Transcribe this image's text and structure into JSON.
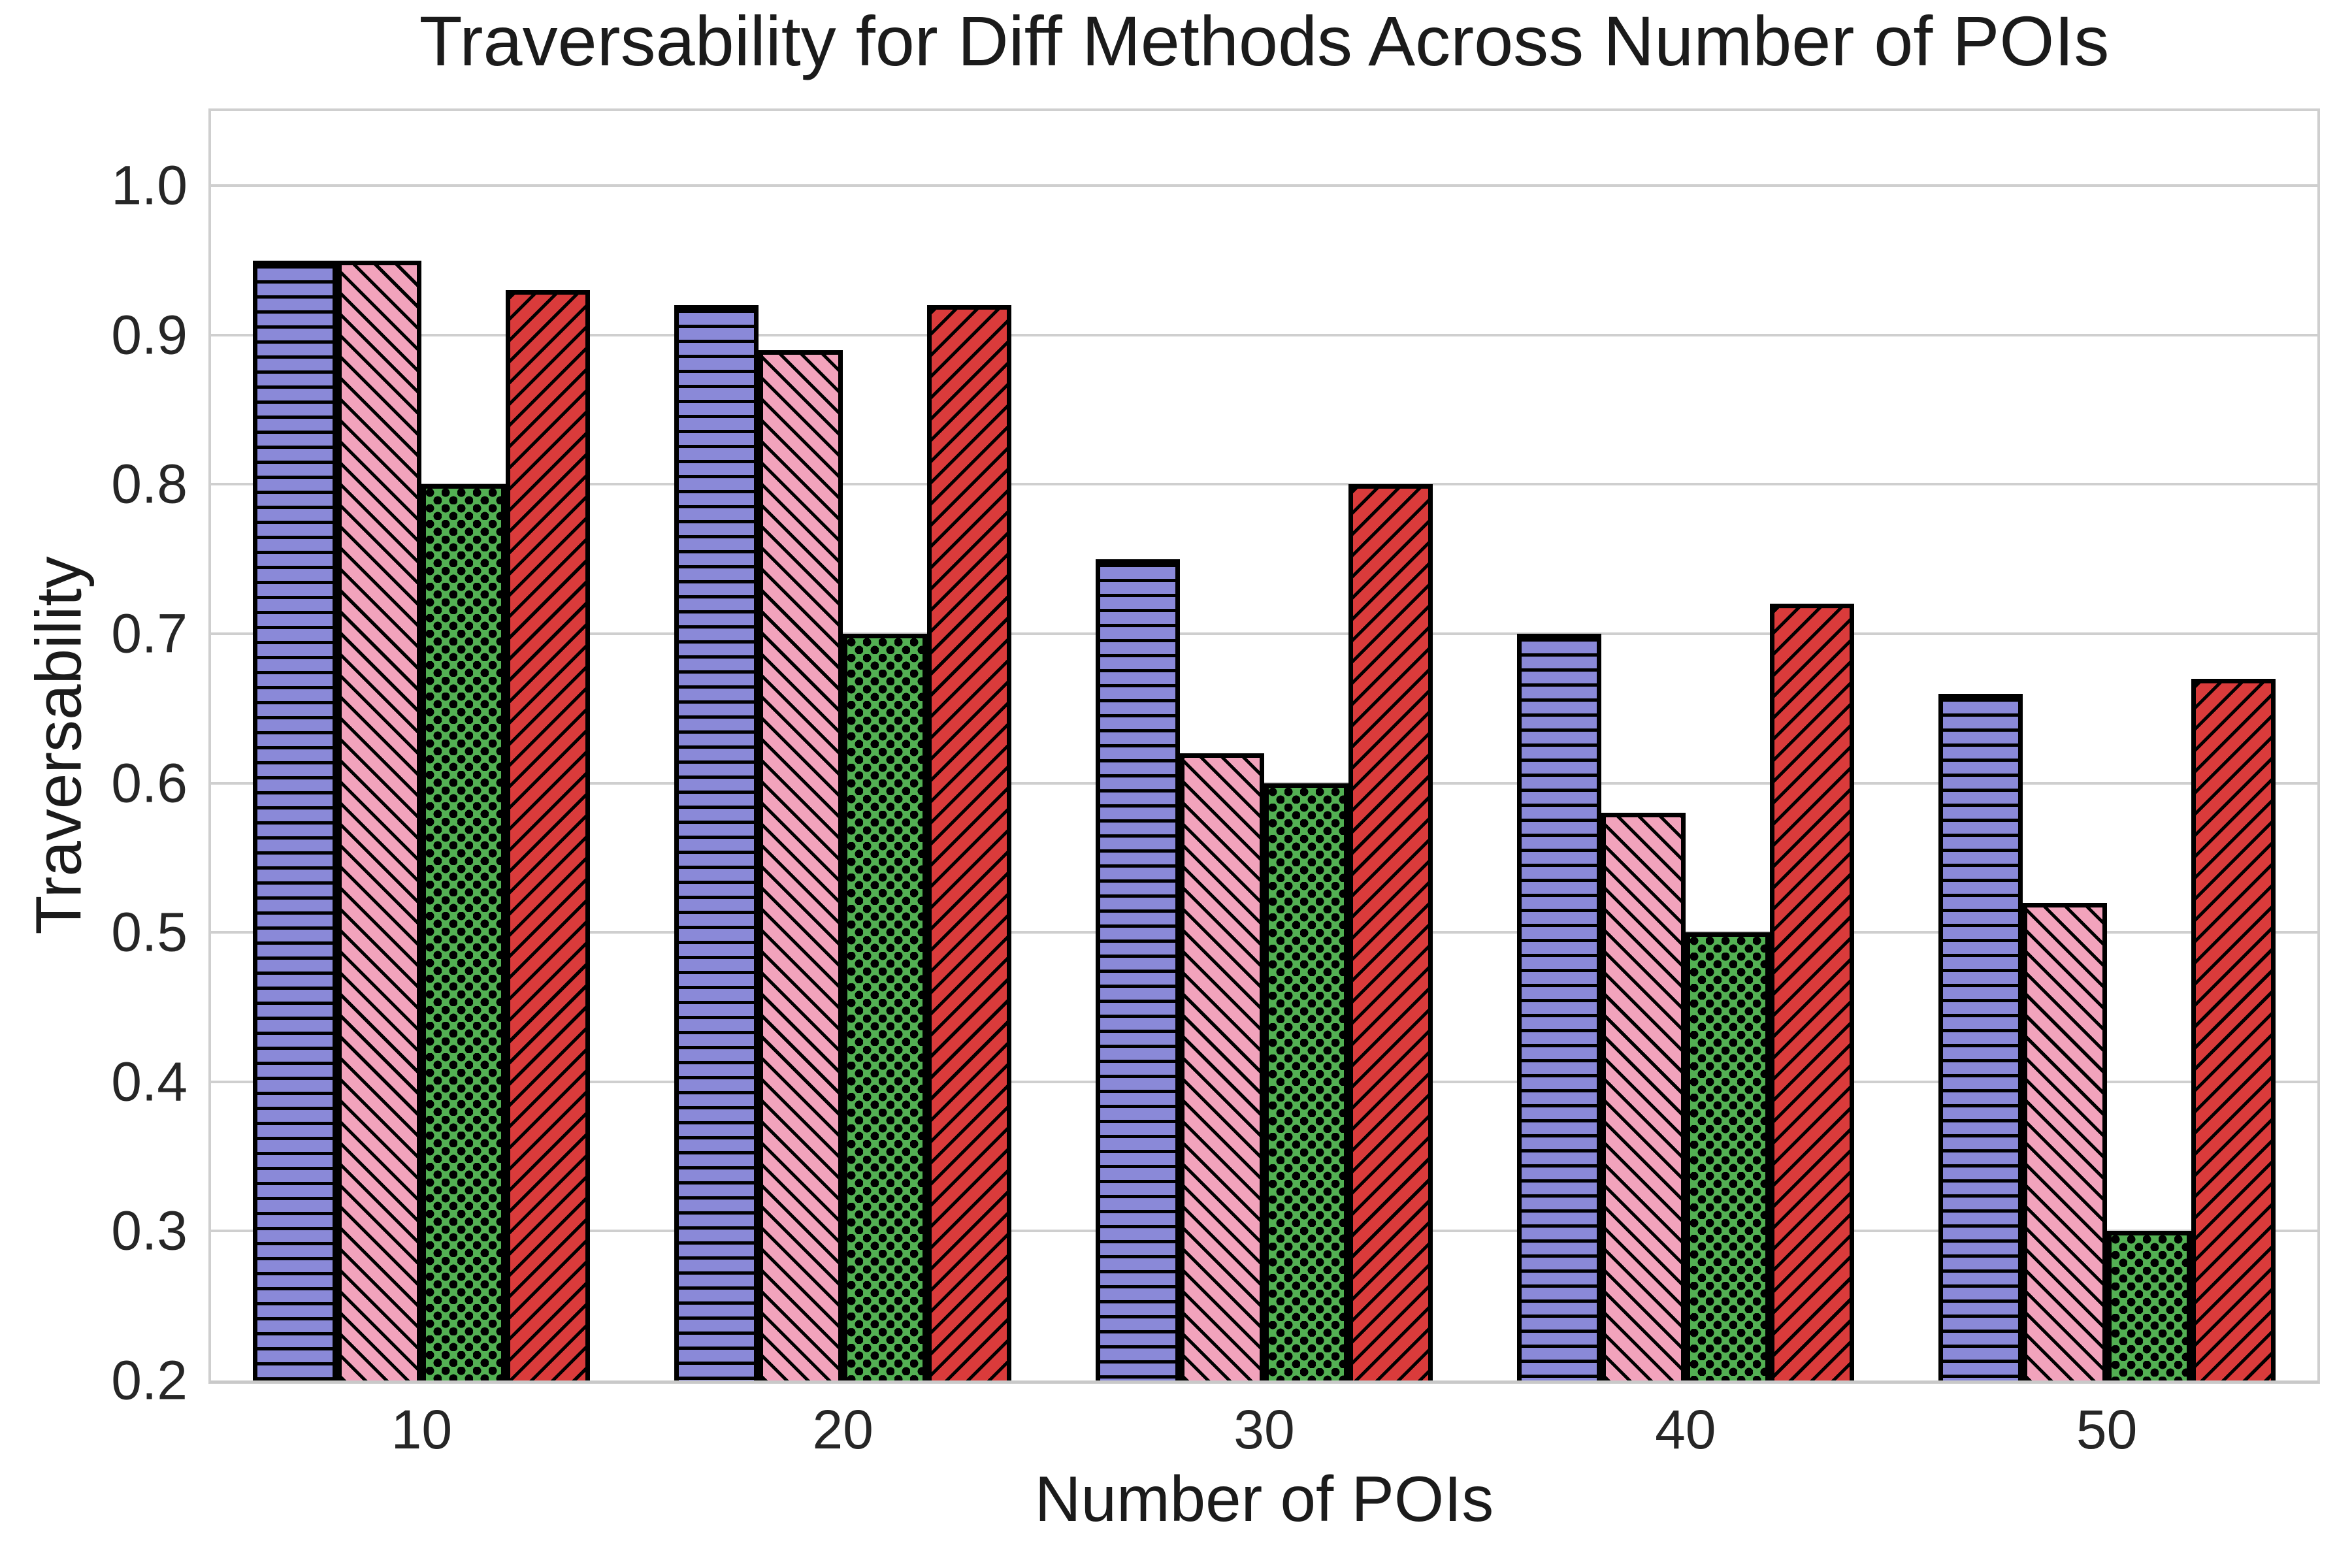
{
  "chart_data": {
    "type": "bar",
    "title": "Traversability for Diff Methods Across Number of POIs",
    "xlabel": "Number of POIs",
    "ylabel": "Traversability",
    "categories": [
      "10",
      "20",
      "30",
      "40",
      "50"
    ],
    "series": [
      {
        "name": "purple-horizontal-hatch",
        "color": "#8a89d8",
        "hatch": "-",
        "values": [
          0.95,
          0.92,
          0.75,
          0.7,
          0.66
        ]
      },
      {
        "name": "pink-backslash-hatch",
        "color": "#f2a3bc",
        "hatch": "\\",
        "values": [
          0.95,
          0.89,
          0.62,
          0.58,
          0.52
        ]
      },
      {
        "name": "green-dot-hatch",
        "color": "#53b053",
        "hatch": ".",
        "values": [
          0.8,
          0.7,
          0.6,
          0.5,
          0.3
        ]
      },
      {
        "name": "red-slash-hatch",
        "color": "#da3b3b",
        "hatch": "/",
        "values": [
          0.93,
          0.92,
          0.8,
          0.72,
          0.67
        ]
      }
    ],
    "ylim": [
      0.2,
      1.05
    ],
    "yticks": [
      "0.2",
      "0.3",
      "0.4",
      "0.5",
      "0.6",
      "0.7",
      "0.8",
      "0.9",
      "1.0"
    ],
    "grid": true,
    "legend": "none",
    "group_width_fraction": 0.8,
    "edge_color": "#000000",
    "grid_color": "#cfcfcf",
    "text_color": "#262626",
    "background": "#ffffff"
  }
}
